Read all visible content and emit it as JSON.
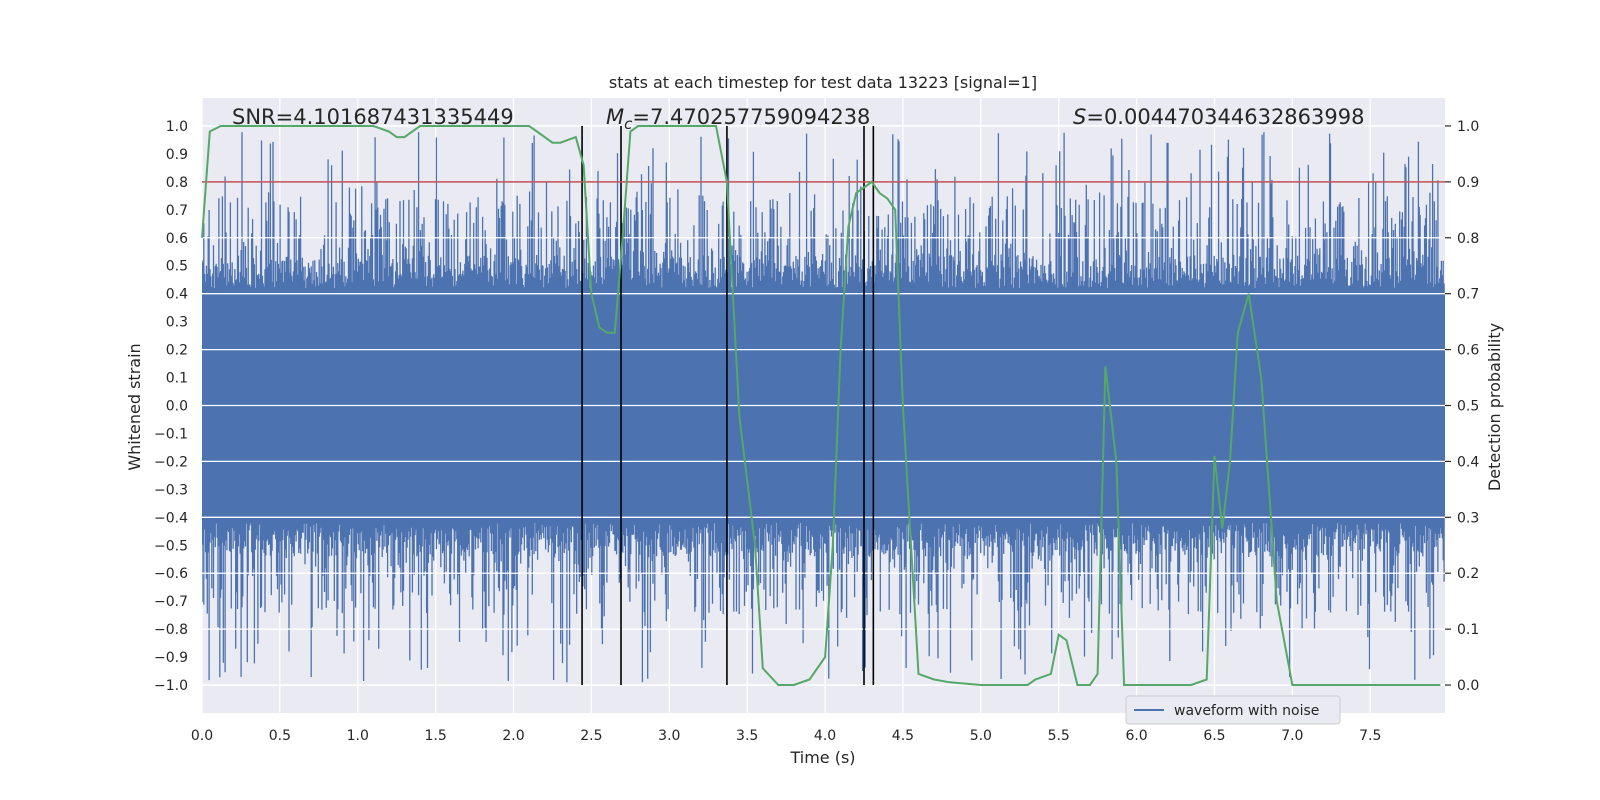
{
  "chart_data": {
    "type": "line",
    "title": "stats at each timestep for test data 13223 [signal=1]",
    "xlabel": "Time (s)",
    "ylabel_left": "Whitened strain",
    "ylabel_right": "Detection probability",
    "xlim": [
      0.0,
      7.98
    ],
    "ylim_left": [
      -1.1,
      1.1
    ],
    "ylim_right": [
      -0.05,
      1.05
    ],
    "x_ticks": [
      0.0,
      0.5,
      1.0,
      1.5,
      2.0,
      2.5,
      3.0,
      3.5,
      4.0,
      4.5,
      5.0,
      5.5,
      6.0,
      6.5,
      7.0,
      7.5
    ],
    "x_tick_labels": [
      "0.0",
      "0.5",
      "1.0",
      "1.5",
      "2.0",
      "2.5",
      "3.0",
      "3.5",
      "4.0",
      "4.5",
      "5.0",
      "5.5",
      "6.0",
      "6.5",
      "7.0",
      "7.5"
    ],
    "y_left_ticks": [
      1.0,
      0.9,
      0.8,
      0.7,
      0.6,
      0.5,
      0.4,
      0.3,
      0.2,
      0.1,
      0.0,
      -0.1,
      -0.2,
      -0.3,
      -0.4,
      -0.5,
      -0.6,
      -0.7,
      -0.8,
      -0.9,
      -1.0
    ],
    "y_left_tick_labels": [
      "1.0",
      "0.9",
      "0.8",
      "0.7",
      "0.6",
      "0.5",
      "0.4",
      "0.3",
      "0.2",
      "0.1",
      "0.0",
      "−0.1",
      "−0.2",
      "−0.3",
      "−0.4",
      "−0.5",
      "−0.6",
      "−0.7",
      "−0.8",
      "−0.9",
      "−1.0"
    ],
    "y_right_ticks": [
      1.0,
      0.9,
      0.8,
      0.7,
      0.6,
      0.5,
      0.4,
      0.3,
      0.2,
      0.1,
      0.0
    ],
    "y_right_tick_labels": [
      "1.0",
      "0.9",
      "0.8",
      "0.7",
      "0.6",
      "0.5",
      "0.4",
      "0.3",
      "0.2",
      "0.1",
      "0.0"
    ],
    "annotations": {
      "snr": "SNR=4.101687431335449",
      "mc_symbol": "M",
      "mc_sub": "c",
      "mc_value": "=7.470257759094238",
      "s_symbol": "S",
      "s_value": "=0.004470344632863998"
    },
    "threshold_line": {
      "value_right_axis": 0.9,
      "color": "#c44e52"
    },
    "vertical_lines_x": [
      2.44,
      2.69,
      3.37,
      4.25,
      4.31
    ],
    "waveform_series": {
      "name": "waveform with noise",
      "color": "#4c72b0",
      "description_values": "noisy whitened strain sampled densely over 0–7.98 s, spanning roughly −1.0 to 1.0"
    },
    "probability_series": {
      "name": "detection probability",
      "color": "#55a868",
      "x": [
        0.0,
        0.05,
        0.12,
        0.25,
        0.5,
        0.8,
        1.0,
        1.1,
        1.2,
        1.25,
        1.3,
        1.4,
        1.5,
        1.7,
        1.9,
        2.0,
        2.1,
        2.15,
        2.25,
        2.3,
        2.4,
        2.45,
        2.5,
        2.55,
        2.6,
        2.65,
        2.7,
        2.75,
        2.8,
        2.9,
        3.1,
        3.3,
        3.37,
        3.45,
        3.55,
        3.6,
        3.7,
        3.8,
        3.9,
        4.0,
        4.05,
        4.1,
        4.15,
        4.2,
        4.25,
        4.3,
        4.35,
        4.4,
        4.45,
        4.5,
        4.6,
        4.7,
        4.8,
        5.0,
        5.2,
        5.3,
        5.35,
        5.45,
        5.5,
        5.55,
        5.62,
        5.7,
        5.75,
        5.8,
        5.87,
        5.92,
        6.0,
        6.1,
        6.2,
        6.35,
        6.45,
        6.5,
        6.55,
        6.6,
        6.65,
        6.72,
        6.8,
        6.9,
        7.0,
        7.2,
        7.5,
        7.8,
        7.95
      ],
      "y": [
        0.8,
        0.99,
        1.0,
        1.0,
        1.0,
        1.0,
        1.0,
        1.0,
        0.99,
        0.98,
        0.98,
        1.0,
        1.0,
        1.0,
        1.0,
        1.0,
        1.0,
        0.99,
        0.97,
        0.97,
        0.98,
        0.93,
        0.7,
        0.64,
        0.63,
        0.63,
        0.8,
        0.99,
        1.0,
        1.0,
        1.0,
        1.0,
        0.9,
        0.48,
        0.25,
        0.03,
        0.0,
        0.0,
        0.01,
        0.05,
        0.25,
        0.6,
        0.82,
        0.88,
        0.89,
        0.9,
        0.88,
        0.87,
        0.85,
        0.5,
        0.02,
        0.01,
        0.005,
        0.0,
        0.0,
        0.0,
        0.01,
        0.02,
        0.09,
        0.08,
        0.0,
        0.0,
        0.02,
        0.57,
        0.4,
        0.0,
        0.0,
        0.0,
        0.0,
        0.0,
        0.01,
        0.41,
        0.28,
        0.4,
        0.63,
        0.7,
        0.55,
        0.15,
        0.0,
        0.0,
        0.0,
        0.0,
        0.0
      ]
    },
    "legend": {
      "entries": [
        "waveform with noise"
      ],
      "placement": "lower-right"
    },
    "grid": true
  }
}
